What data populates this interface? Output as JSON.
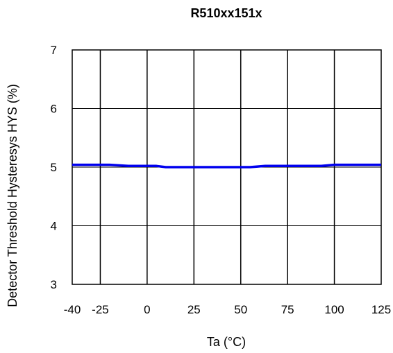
{
  "chart_data": {
    "type": "line",
    "title": "R510xx151x",
    "xlabel": "Ta (°C)",
    "ylabel": "Detector Threshold Hysteresys HYS (%)",
    "xlim": [
      -40,
      125
    ],
    "ylim": [
      3,
      7
    ],
    "x_ticks": [
      -40,
      -25,
      0,
      25,
      50,
      75,
      100,
      125
    ],
    "y_ticks": [
      3,
      4,
      5,
      6,
      7
    ],
    "grid": true,
    "series": [
      {
        "color": "#0000ee",
        "x": [
          -40,
          -20,
          -10,
          5,
          10,
          25,
          40,
          55,
          63,
          75,
          93,
          100,
          125
        ],
        "y": [
          5.04,
          5.04,
          5.02,
          5.02,
          5.0,
          5.0,
          5.0,
          5.0,
          5.02,
          5.02,
          5.02,
          5.04,
          5.04
        ]
      }
    ]
  }
}
